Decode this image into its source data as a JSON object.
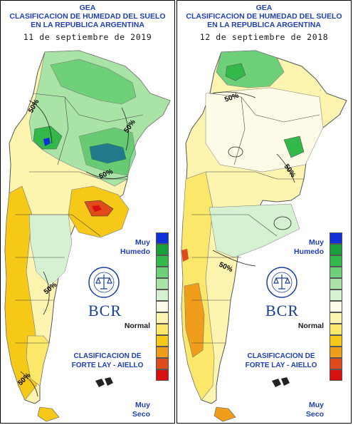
{
  "panels": [
    {
      "title_line1": "GEA",
      "title_line2": "CLASIFICACION DE HUMEDAD DEL SUELO",
      "title_line3": "EN LA REPUBLICA ARGENTINA",
      "date": "11 de septiembre de 2019",
      "contour_labels": [
        "50%",
        "50%",
        "50%",
        "50%",
        "50%"
      ]
    },
    {
      "title_line1": "GEA",
      "title_line2": "CLASIFICACION DE HUMEDAD DEL SUELO",
      "title_line3": "EN LA REPUBLICA ARGENTINA",
      "date": "12 de septiembre de 2018",
      "contour_labels": [
        "50%",
        "50%",
        "50%"
      ]
    }
  ],
  "legend": {
    "muy": "Muy",
    "humedo": "Humedo",
    "normal": "Normal",
    "muy_seco_1": "Muy",
    "muy_seco_2": "Seco",
    "bcr": "BCR",
    "clasif_1": "CLASIFICACION DE",
    "clasif_2": "FORTE LAY - AIELLO",
    "colors": [
      "#1030d8",
      "#1aa03a",
      "#33b84a",
      "#6ed17a",
      "#a9e3a6",
      "#d6f1d2",
      "#fdfbe8",
      "#fdf4b0",
      "#fbe76a",
      "#f6c818",
      "#ef9d1a",
      "#e04b1c",
      "#d81010"
    ]
  },
  "logo_icon": "bolsa-de-comercio-de-rosario-seal-icon"
}
